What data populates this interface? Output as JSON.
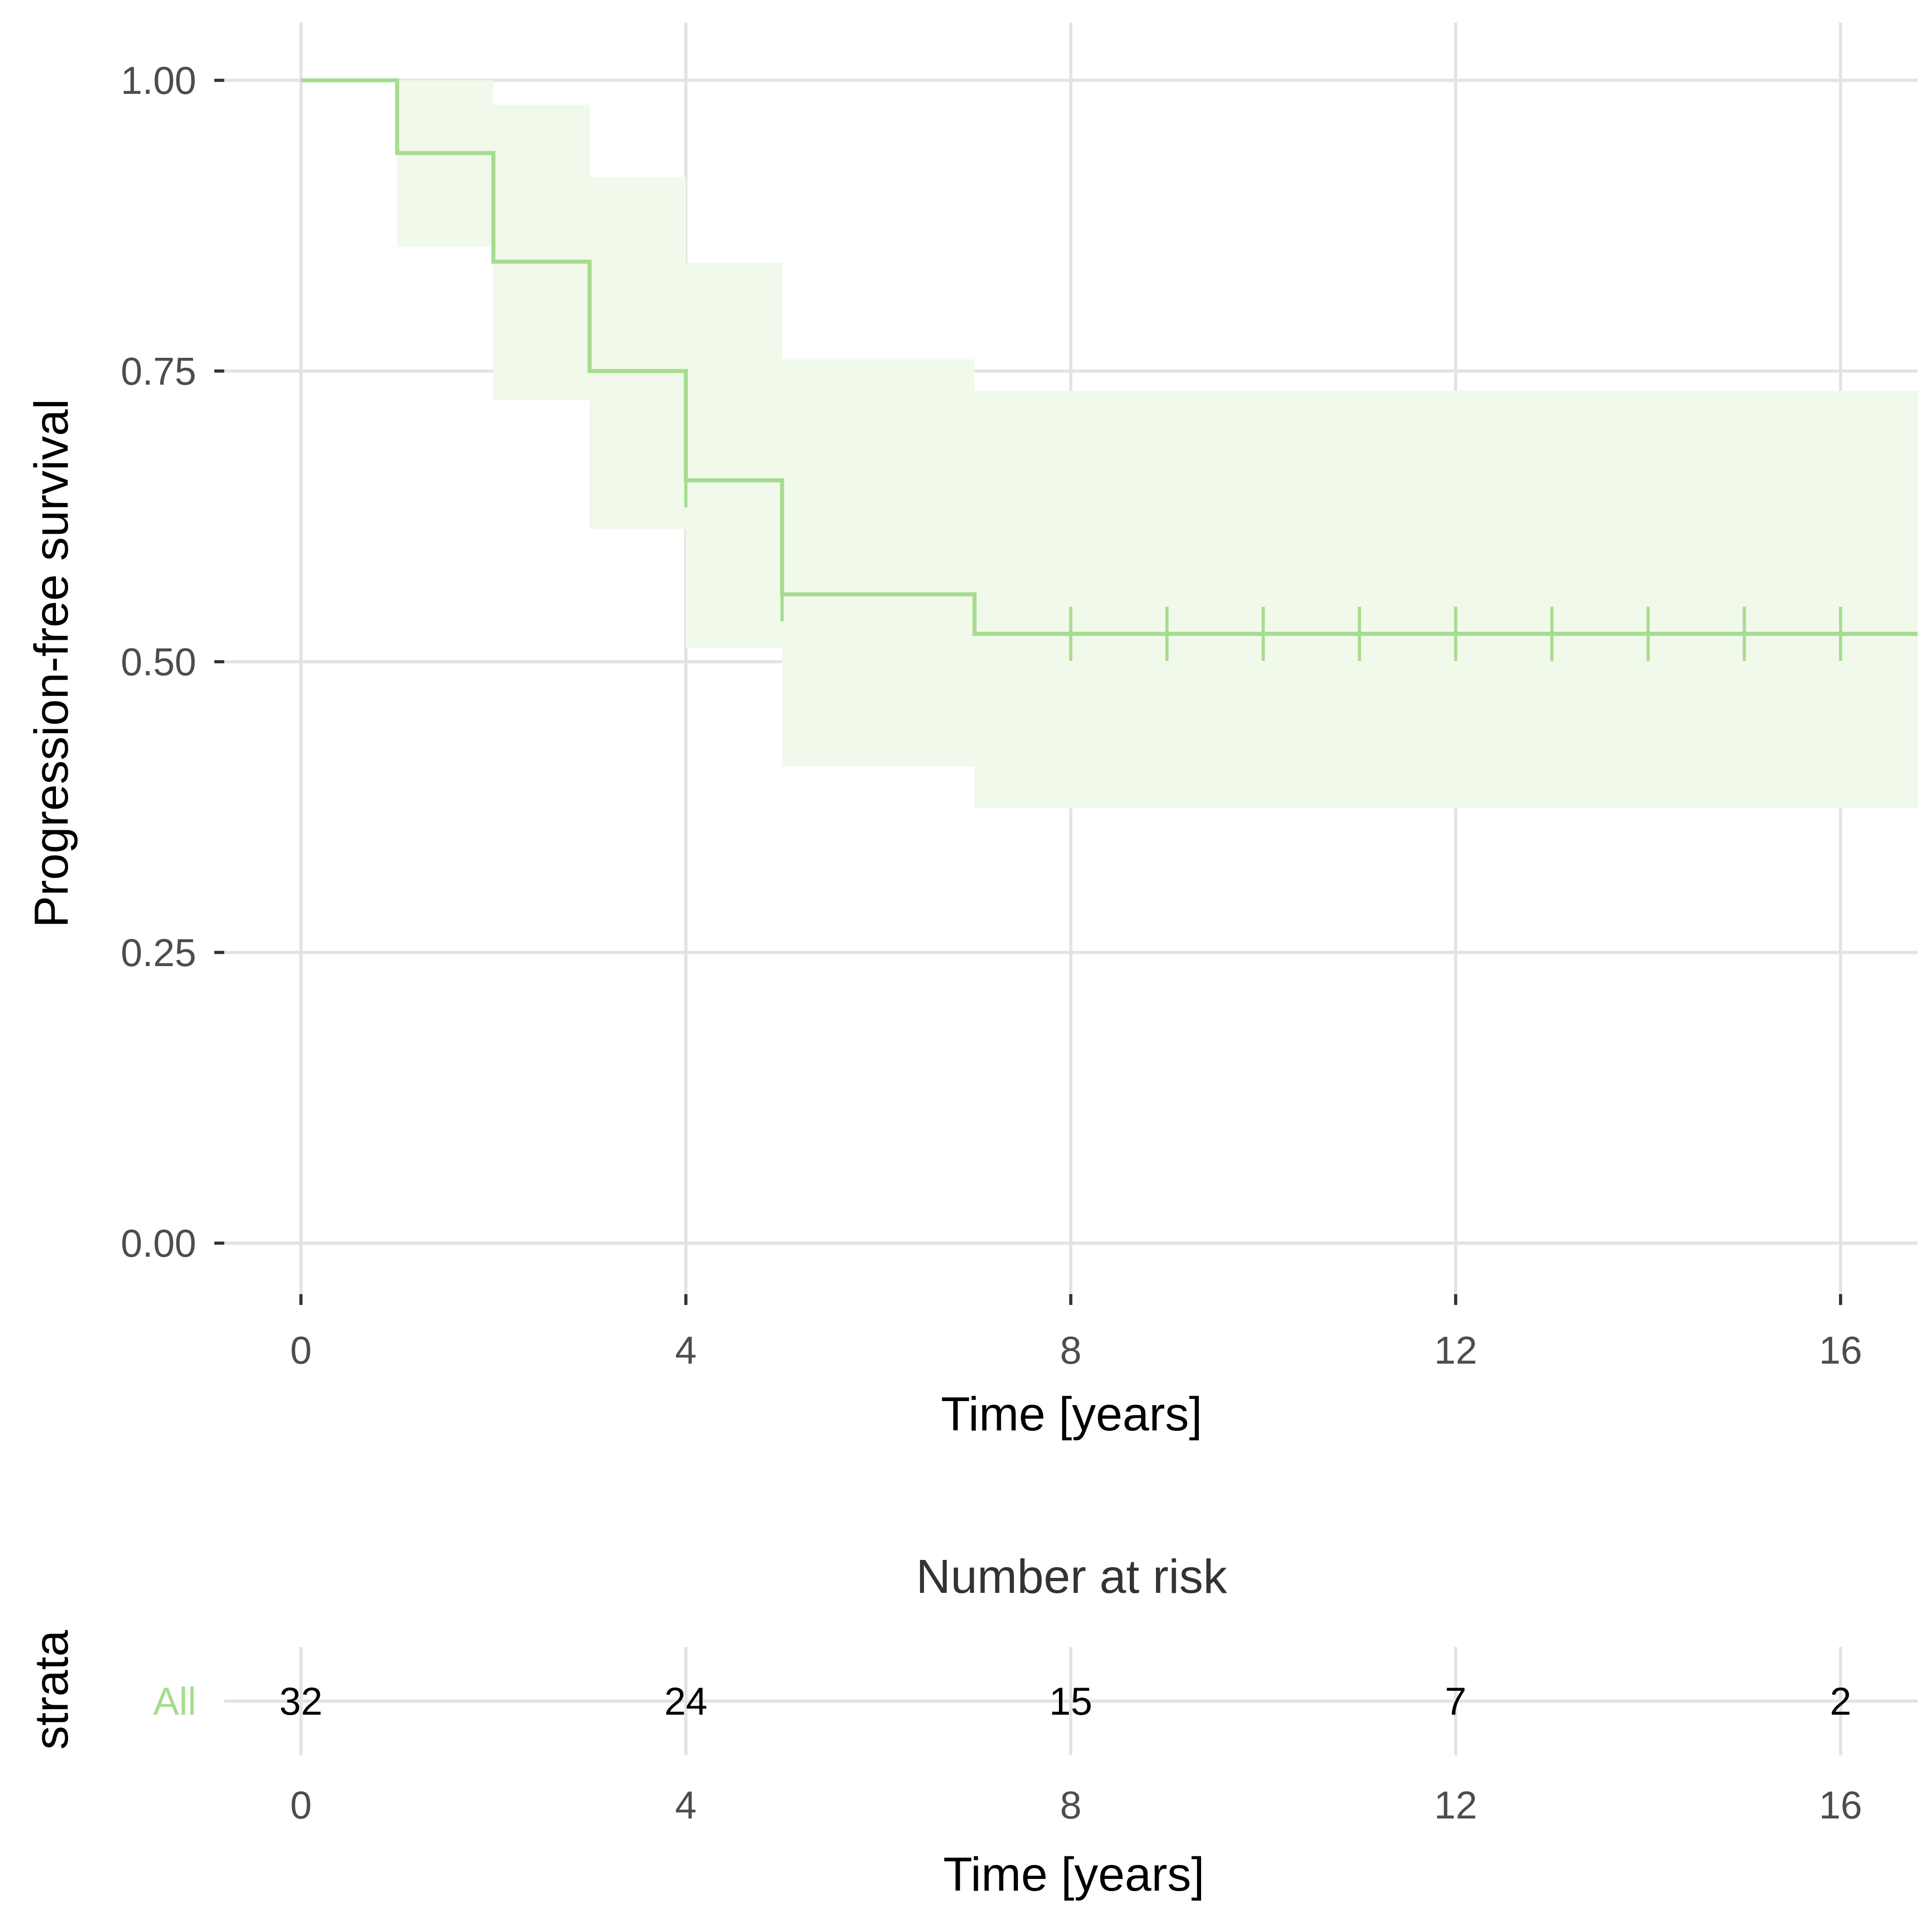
{
  "chart_data": [
    {
      "type": "line",
      "subtype": "kaplan-meier",
      "xlabel": "Time [years]",
      "ylabel": "Progression-free survival",
      "xlim": [
        0,
        16.8
      ],
      "ylim": [
        0,
        1
      ],
      "x_ticks": [
        0,
        4,
        8,
        12,
        16
      ],
      "x_tick_labels": [
        "0",
        "4",
        "8",
        "12",
        "16"
      ],
      "y_ticks": [
        0,
        0.25,
        0.5,
        0.75,
        1.0
      ],
      "y_tick_labels": [
        "0.00",
        "0.25",
        "0.50",
        "0.75",
        "1.00"
      ],
      "grid": true,
      "series": [
        {
          "name": "All",
          "color": "#a6dc8f",
          "band_color": "#f0f9ea",
          "steps": [
            {
              "x_start": 0,
              "x_end": 1,
              "y": 1.0,
              "lower": 1.0,
              "upper": 1.0
            },
            {
              "x_start": 1,
              "x_end": 2,
              "y": 0.9375,
              "lower": 0.857,
              "upper": 1.0
            },
            {
              "x_start": 2,
              "x_end": 3,
              "y": 0.844,
              "lower": 0.725,
              "upper": 0.979
            },
            {
              "x_start": 3,
              "x_end": 4,
              "y": 0.75,
              "lower": 0.614,
              "upper": 0.917
            },
            {
              "x_start": 4,
              "x_end": 5,
              "y": 0.656,
              "lower": 0.512,
              "upper": 0.843
            },
            {
              "x_start": 5,
              "x_end": 7,
              "y": 0.558,
              "lower": 0.41,
              "upper": 0.76
            },
            {
              "x_start": 7,
              "x_end": 16.8,
              "y": 0.524,
              "lower": 0.374,
              "upper": 0.733
            }
          ],
          "censor_times": [
            4,
            5,
            8,
            9,
            10,
            11,
            12,
            13,
            14,
            15,
            16
          ]
        }
      ]
    },
    {
      "type": "table",
      "title": "Number at risk",
      "ylabel": "strata",
      "xlabel": "Time [years]",
      "x_ticks": [
        0,
        4,
        8,
        12,
        16
      ],
      "x_tick_labels": [
        "0",
        "4",
        "8",
        "12",
        "16"
      ],
      "rows": [
        {
          "strata": "All",
          "color": "#a6dc8f",
          "values": [
            "32",
            "24",
            "15",
            "7",
            "2"
          ]
        }
      ]
    }
  ]
}
